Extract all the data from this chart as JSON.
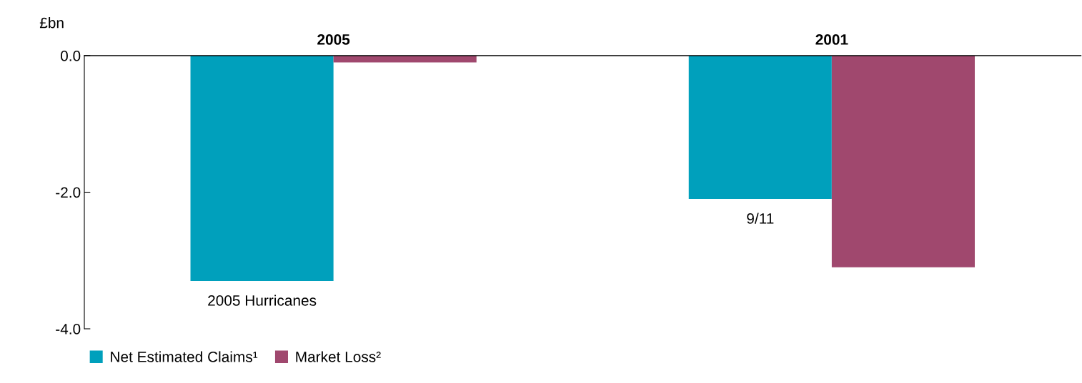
{
  "chart_data": {
    "type": "bar",
    "ylabel": "£bn",
    "categories": [
      "2005",
      "2001"
    ],
    "series": [
      {
        "name": "Net Estimated Claims¹",
        "color": "#00a0bc",
        "values": [
          -3.3,
          -2.1
        ]
      },
      {
        "name": "Market Loss²",
        "color": "#a0486e",
        "values": [
          -0.1,
          -3.1
        ]
      }
    ],
    "ylim": [
      -4.0,
      0.0
    ],
    "yticks": [
      {
        "value": 0,
        "label": "0.0"
      },
      {
        "value": -2,
        "label": "-2.0"
      },
      {
        "value": -4,
        "label": "-4.0"
      }
    ],
    "annotations": [
      "2005 Hurricanes",
      "9/11"
    ],
    "grid": false,
    "legend": "bottom left"
  }
}
